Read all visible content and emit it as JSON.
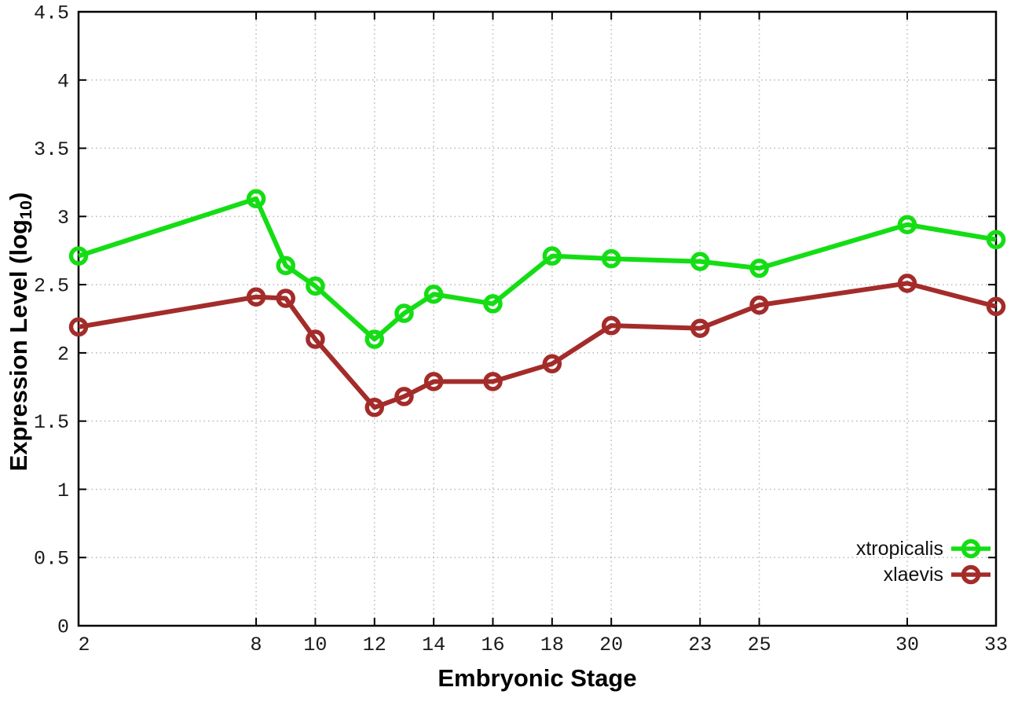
{
  "chart_data": {
    "type": "line",
    "x": [
      2,
      8,
      9,
      10,
      12,
      13,
      14,
      16,
      18,
      20,
      23,
      25,
      30,
      33
    ],
    "series": [
      {
        "name": "xtropicalis",
        "color": "#14dd14",
        "values": [
          2.71,
          3.13,
          2.64,
          2.49,
          2.1,
          2.29,
          2.43,
          2.36,
          2.71,
          2.69,
          2.67,
          2.62,
          2.94,
          2.83
        ]
      },
      {
        "name": "xlaevis",
        "color": "#a32c2a",
        "values": [
          2.19,
          2.41,
          2.4,
          2.1,
          1.6,
          1.68,
          1.79,
          1.79,
          1.92,
          2.2,
          2.18,
          2.35,
          2.51,
          2.34
        ]
      }
    ],
    "xlabel": "Embryonic Stage",
    "ylabel_main": "Expression Level (log",
    "ylabel_sub": "10",
    "ylabel_suffix": ")",
    "xlim": [
      2,
      33
    ],
    "ylim": [
      0,
      4.5
    ],
    "xticks": [
      2,
      8,
      10,
      12,
      14,
      16,
      18,
      20,
      23,
      25,
      30,
      33
    ],
    "yticks": [
      0,
      0.5,
      1,
      1.5,
      2,
      2.5,
      3,
      3.5,
      4,
      4.5
    ],
    "grid": true,
    "legend_position": "bottom-right",
    "colors": {
      "background": "#ffffff",
      "axis": "#000000",
      "grid": "#b8b8b8",
      "tick_label": "#1a1a1a"
    }
  }
}
